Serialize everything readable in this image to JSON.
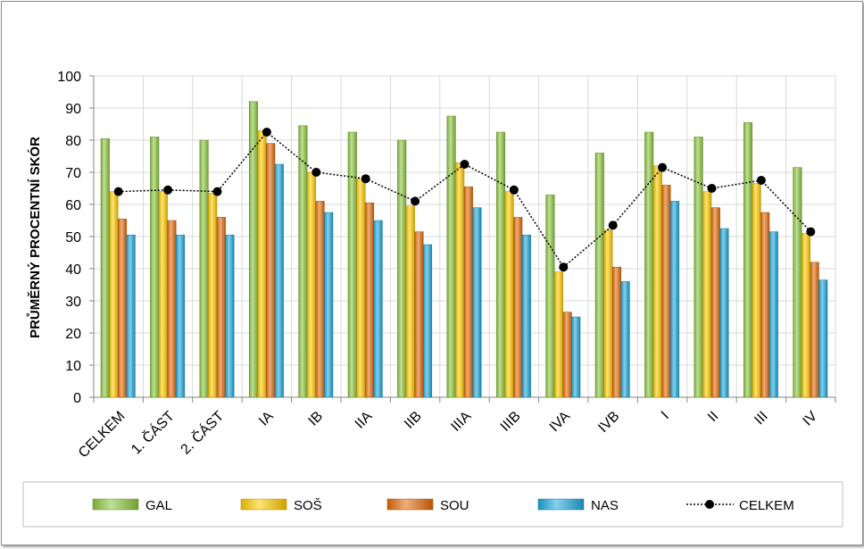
{
  "chart_data": {
    "type": "bar",
    "ylabel": "PRŮMĚRNÝ PROCENTNÍ SKÓR",
    "ylim": [
      0,
      100
    ],
    "yticks": [
      "0",
      "10",
      "20",
      "30",
      "40",
      "50",
      "60",
      "70",
      "80",
      "90",
      "100"
    ],
    "grid": true,
    "legend_position": "bottom",
    "categories": [
      "CELKEM",
      "1. ČÁST",
      "2. ČÁST",
      "IA",
      "IB",
      "IIA",
      "IIB",
      "IIIA",
      "IIIB",
      "IVA",
      "IVB",
      "I",
      "II",
      "III",
      "IV"
    ],
    "series": [
      {
        "name": "GAL",
        "kind": "bar",
        "color": "#8dc63f",
        "values": [
          80.5,
          81,
          80,
          92,
          84.5,
          82.5,
          80,
          87.5,
          82.5,
          63,
          76,
          82.5,
          81,
          85.5,
          71.5
        ]
      },
      {
        "name": "SOŠ",
        "kind": "bar",
        "color": "#ffcc00",
        "values": [
          64,
          64,
          63.5,
          83,
          70,
          68,
          59.5,
          73,
          64,
          39,
          52,
          72,
          64,
          66.5,
          51
        ]
      },
      {
        "name": "SOU",
        "kind": "bar",
        "color": "#e46c0a",
        "values": [
          55.5,
          55,
          56,
          79,
          61,
          60.5,
          51.5,
          65.5,
          56,
          26.5,
          40.5,
          66,
          59,
          57.5,
          42
        ]
      },
      {
        "name": "NAS",
        "kind": "bar",
        "color": "#1fa9dc",
        "values": [
          50.5,
          50.5,
          50.5,
          72.5,
          57.5,
          55,
          47.5,
          59,
          50.5,
          25,
          36,
          61,
          52.5,
          51.5,
          36.5
        ]
      },
      {
        "name": "CELKEM",
        "kind": "line",
        "color": "#000000",
        "values": [
          64,
          64.5,
          64,
          82.5,
          70,
          68,
          61,
          72.5,
          64.5,
          40.5,
          53.5,
          71.5,
          65,
          67.5,
          51.5
        ]
      }
    ]
  }
}
